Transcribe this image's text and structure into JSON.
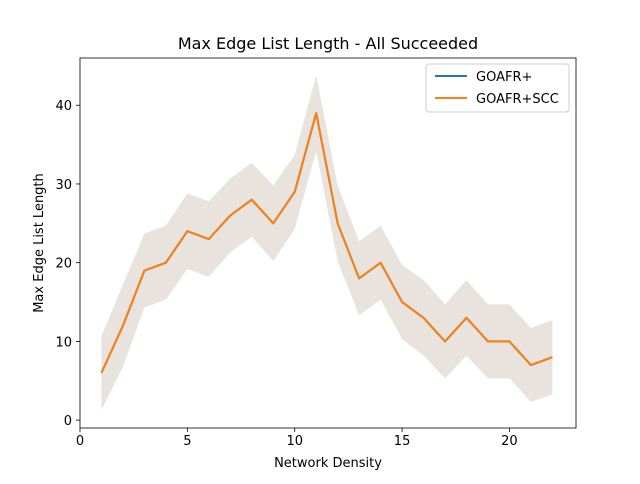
{
  "chart_data": {
    "type": "line",
    "title": "Max Edge List Length - All Succeeded",
    "xlabel": "Network Density",
    "ylabel": "Max Edge List Length",
    "xlim": [
      0,
      23.1
    ],
    "ylim": [
      -1,
      46
    ],
    "x_ticks": [
      0,
      5,
      10,
      15,
      20
    ],
    "y_ticks": [
      0,
      10,
      20,
      30,
      40
    ],
    "grid": false,
    "legend_position": "top-right",
    "x": [
      1,
      2,
      3,
      4,
      5,
      6,
      7,
      8,
      9,
      10,
      11,
      12,
      13,
      14,
      15,
      16,
      17,
      18,
      19,
      20,
      21,
      22
    ],
    "series": [
      {
        "name": "GOAFR+",
        "color": "#1f77b4",
        "values": [
          6,
          12,
          19,
          20,
          24,
          23,
          26,
          28,
          25,
          29,
          39,
          25,
          18,
          20,
          15,
          13,
          10,
          13,
          10,
          10,
          7,
          8
        ]
      },
      {
        "name": "GOAFR+SCC",
        "color": "#ff7f0e",
        "values": [
          6,
          12,
          19,
          20,
          24,
          23,
          26,
          28,
          25,
          29,
          39,
          25,
          18,
          20,
          15,
          13,
          10,
          13,
          10,
          10,
          7,
          8
        ]
      }
    ],
    "band": {
      "color": "#e8e3dd",
      "lower": [
        1.3,
        6.8,
        14.3,
        15.3,
        19.2,
        18.2,
        21.3,
        23.3,
        20.2,
        24.3,
        34.2,
        20.2,
        13.3,
        15.3,
        10.3,
        8.2,
        5.3,
        8.2,
        5.3,
        5.3,
        2.3,
        3.3
      ],
      "upper": [
        10.7,
        17.2,
        23.7,
        24.7,
        28.8,
        27.8,
        30.7,
        32.7,
        29.8,
        33.7,
        43.8,
        29.8,
        22.7,
        24.7,
        19.7,
        17.8,
        14.7,
        17.8,
        14.7,
        14.7,
        11.7,
        12.7
      ]
    }
  }
}
